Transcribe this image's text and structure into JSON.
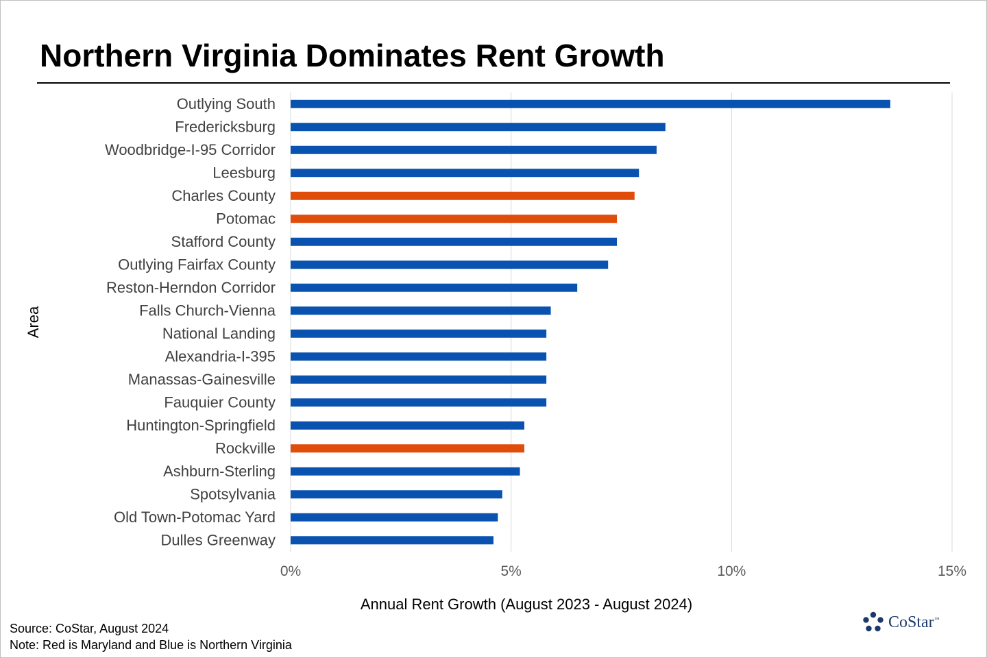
{
  "brand": {
    "name": "CoStar",
    "tm": "™",
    "color": "#1b3a6b"
  },
  "colors": {
    "virginia": "#0a52b0",
    "maryland": "#e04c0a",
    "grid": "#d9d9d9"
  },
  "footer": {
    "source": "Source: CoStar, August 2024",
    "note": "Note: Red is Maryland and Blue is Northern Virginia"
  },
  "chart_data": {
    "type": "bar",
    "orientation": "horizontal",
    "title": "Northern Virginia Dominates Rent Growth",
    "xlabel": "Annual Rent Growth (August 2023 - August 2024)",
    "ylabel": "Area",
    "xlim": [
      0,
      15
    ],
    "xticks": [
      0,
      5,
      10,
      15
    ],
    "xtick_labels": [
      "0%",
      "5%",
      "10%",
      "15%"
    ],
    "grid": "vertical",
    "categories": [
      "Outlying South",
      "Fredericksburg",
      "Woodbridge-I-95 Corridor",
      "Leesburg",
      "Charles County",
      "Potomac",
      "Stafford County",
      "Outlying Fairfax County",
      "Reston-Herndon Corridor",
      "Falls Church-Vienna",
      "National Landing",
      "Alexandria-I-395",
      "Manassas-Gainesville",
      "Fauquier County",
      "Huntington-Springfield",
      "Rockville",
      "Ashburn-Sterling",
      "Spotsylvania",
      "Old Town-Potomac Yard",
      "Dulles Greenway"
    ],
    "values": [
      13.6,
      8.5,
      8.3,
      7.9,
      7.8,
      7.4,
      7.4,
      7.2,
      6.5,
      5.9,
      5.8,
      5.8,
      5.8,
      5.8,
      5.3,
      5.3,
      5.2,
      4.8,
      4.7,
      4.6
    ],
    "regions": [
      "virginia",
      "virginia",
      "virginia",
      "virginia",
      "maryland",
      "maryland",
      "virginia",
      "virginia",
      "virginia",
      "virginia",
      "virginia",
      "virginia",
      "virginia",
      "virginia",
      "virginia",
      "maryland",
      "virginia",
      "virginia",
      "virginia",
      "virginia"
    ]
  }
}
